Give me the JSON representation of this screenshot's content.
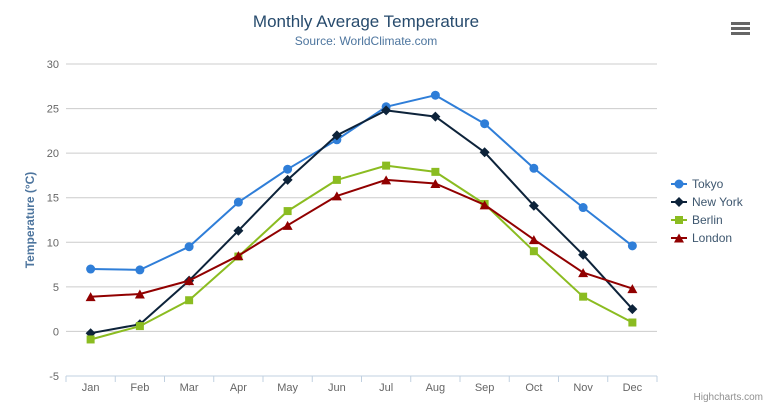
{
  "header": {
    "title": "Monthly Average Temperature",
    "subtitle": "Source: WorldClimate.com"
  },
  "credit": {
    "label": "Highcharts.com"
  },
  "chart_data": {
    "type": "line",
    "title": "Monthly Average Temperature",
    "subtitle": "Source: WorldClimate.com",
    "categories": [
      "Jan",
      "Feb",
      "Mar",
      "Apr",
      "May",
      "Jun",
      "Jul",
      "Aug",
      "Sep",
      "Oct",
      "Nov",
      "Dec"
    ],
    "series": [
      {
        "name": "Tokyo",
        "color": "#2f7ed8",
        "marker": "circle",
        "values": [
          7.0,
          6.9,
          9.5,
          14.5,
          18.2,
          21.5,
          25.2,
          26.5,
          23.3,
          18.3,
          13.9,
          9.6
        ]
      },
      {
        "name": "New York",
        "color": "#0d233a",
        "marker": "diamond",
        "values": [
          -0.2,
          0.8,
          5.7,
          11.3,
          17.0,
          22.0,
          24.8,
          24.1,
          20.1,
          14.1,
          8.6,
          2.5
        ]
      },
      {
        "name": "Berlin",
        "color": "#8bbc21",
        "marker": "square",
        "values": [
          -0.9,
          0.6,
          3.5,
          8.4,
          13.5,
          17.0,
          18.6,
          17.9,
          14.3,
          9.0,
          3.9,
          1.0
        ]
      },
      {
        "name": "London",
        "color": "#910000",
        "marker": "triangle",
        "values": [
          3.9,
          4.2,
          5.7,
          8.5,
          11.9,
          15.2,
          17.0,
          16.6,
          14.2,
          10.3,
          6.6,
          4.8
        ]
      }
    ],
    "xlabel": "",
    "ylabel": "Temperature (°C)",
    "ylim": [
      -5,
      30
    ],
    "tick_interval": 5,
    "grid": true,
    "legend_position": "right",
    "colors": {
      "grid": "#cccccc",
      "axis_line": "#c0d0e0",
      "tick_label": "#666666",
      "y_title": "#4d759e",
      "title": "#274b6d",
      "subtitle": "#4d759e",
      "legend_text": "#3e576f",
      "credit": "#909090"
    }
  }
}
